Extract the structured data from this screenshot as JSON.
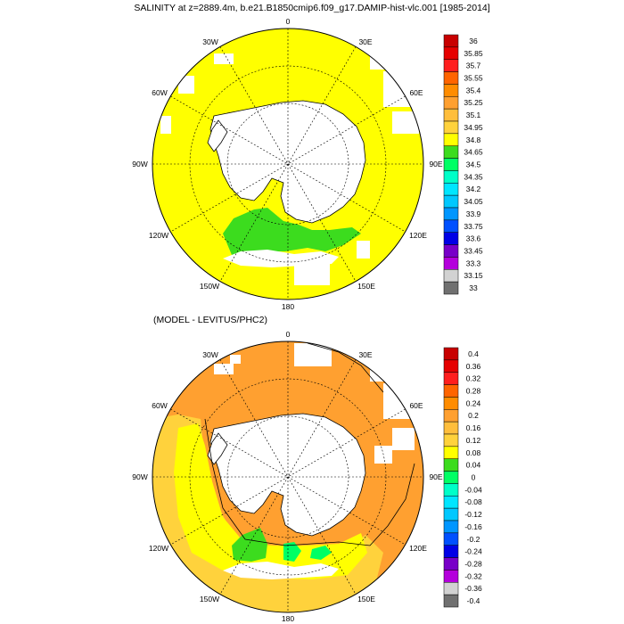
{
  "title": "SALINITY at z=2889.4m, b.e21.B1850cmip6.f09_g17.DAMIP-hist-vlc.001 [1985-2014]",
  "subtitle": "(MODEL - LEVITUS/PHC2)",
  "lon_labels": [
    "0",
    "30E",
    "60E",
    "90E",
    "120E",
    "150E",
    "180",
    "150W",
    "120W",
    "90W",
    "60W",
    "30W"
  ],
  "colors": {
    "land": "#ffffff",
    "coast": "#000000",
    "grid": "#000000"
  },
  "panel1_colorbar": {
    "labels": [
      "36",
      "35.85",
      "35.7",
      "35.55",
      "35.4",
      "35.25",
      "35.1",
      "34.95",
      "34.8",
      "34.65",
      "34.5",
      "34.35",
      "34.2",
      "34.05",
      "33.9",
      "33.75",
      "33.6",
      "33.45",
      "33.3",
      "33.15",
      "33"
    ],
    "colors": [
      "#c80000",
      "#e60000",
      "#ff1e1e",
      "#ff6400",
      "#ff8c00",
      "#ffa030",
      "#ffbe3c",
      "#ffd23c",
      "#ffff00",
      "#3cdc1e",
      "#00ff64",
      "#00ffc8",
      "#00e6ff",
      "#00c8ff",
      "#0096ff",
      "#0050ff",
      "#0000e6",
      "#7800c8",
      "#b400dc",
      "#d2d2d2",
      "#707070"
    ]
  },
  "panel2_colorbar": {
    "labels": [
      "0.4",
      "0.36",
      "0.32",
      "0.28",
      "0.24",
      "0.2",
      "0.16",
      "0.12",
      "0.08",
      "0.04",
      "0",
      "-0.04",
      "-0.08",
      "-0.12",
      "-0.16",
      "-0.2",
      "-0.24",
      "-0.28",
      "-0.32",
      "-0.36",
      "-0.4"
    ],
    "colors": [
      "#c80000",
      "#e60000",
      "#ff1e1e",
      "#ff6400",
      "#ff8c00",
      "#ffa030",
      "#ffbe3c",
      "#ffd23c",
      "#ffff00",
      "#3cdc1e",
      "#00ff64",
      "#00ffc8",
      "#00e6ff",
      "#00c8ff",
      "#0096ff",
      "#0050ff",
      "#0000e6",
      "#7800c8",
      "#b400dc",
      "#d2d2d2",
      "#707070"
    ]
  },
  "panel1_fill": {
    "main_color": "#ffff00",
    "secondary_color": "#3cdc1e"
  },
  "panel2_fill": {
    "main_color": "#ffa030",
    "secondary_color": "#ffff00",
    "tertiary_color": "#3cdc1e",
    "quaternary_color": "#00ff64"
  }
}
